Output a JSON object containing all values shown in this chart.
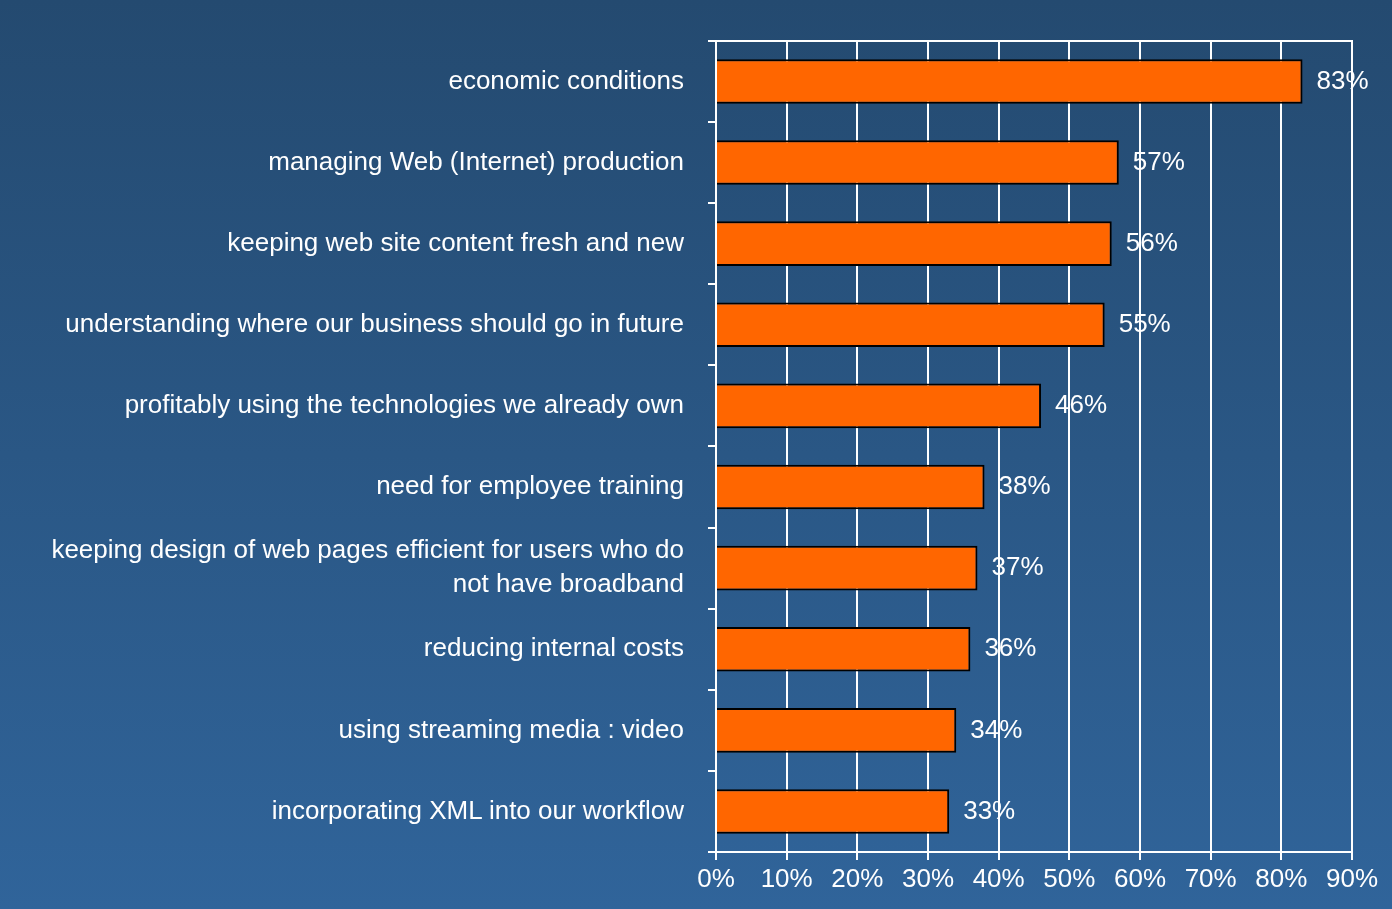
{
  "chart_data": {
    "type": "bar",
    "orientation": "horizontal",
    "categories": [
      "economic conditions",
      "managing Web (Internet) production",
      "keeping web site content fresh and new",
      "understanding where our business should go in future",
      "profitably using the technologies we already own",
      "need for employee training",
      "keeping design of web pages efficient for users who do not have broadband",
      "reducing internal costs",
      "using streaming media : video",
      "incorporating XML into our workflow"
    ],
    "values": [
      83,
      57,
      56,
      55,
      46,
      38,
      37,
      36,
      34,
      33
    ],
    "value_labels": [
      "83%",
      "57%",
      "56%",
      "55%",
      "46%",
      "38%",
      "37%",
      "36%",
      "34%",
      "33%"
    ],
    "color": "#ff6600",
    "xlim": [
      0,
      90
    ],
    "xticks": [
      {
        "value": 0,
        "label": "0%"
      },
      {
        "value": 10,
        "label": "10%"
      },
      {
        "value": 20,
        "label": "20%"
      },
      {
        "value": 30,
        "label": "30%"
      },
      {
        "value": 40,
        "label": "40%"
      },
      {
        "value": 50,
        "label": "50%"
      },
      {
        "value": 60,
        "label": "60%"
      },
      {
        "value": 70,
        "label": "70%"
      },
      {
        "value": 80,
        "label": "80%"
      },
      {
        "value": 90,
        "label": "90%"
      }
    ],
    "grid": "x",
    "legend": false
  }
}
